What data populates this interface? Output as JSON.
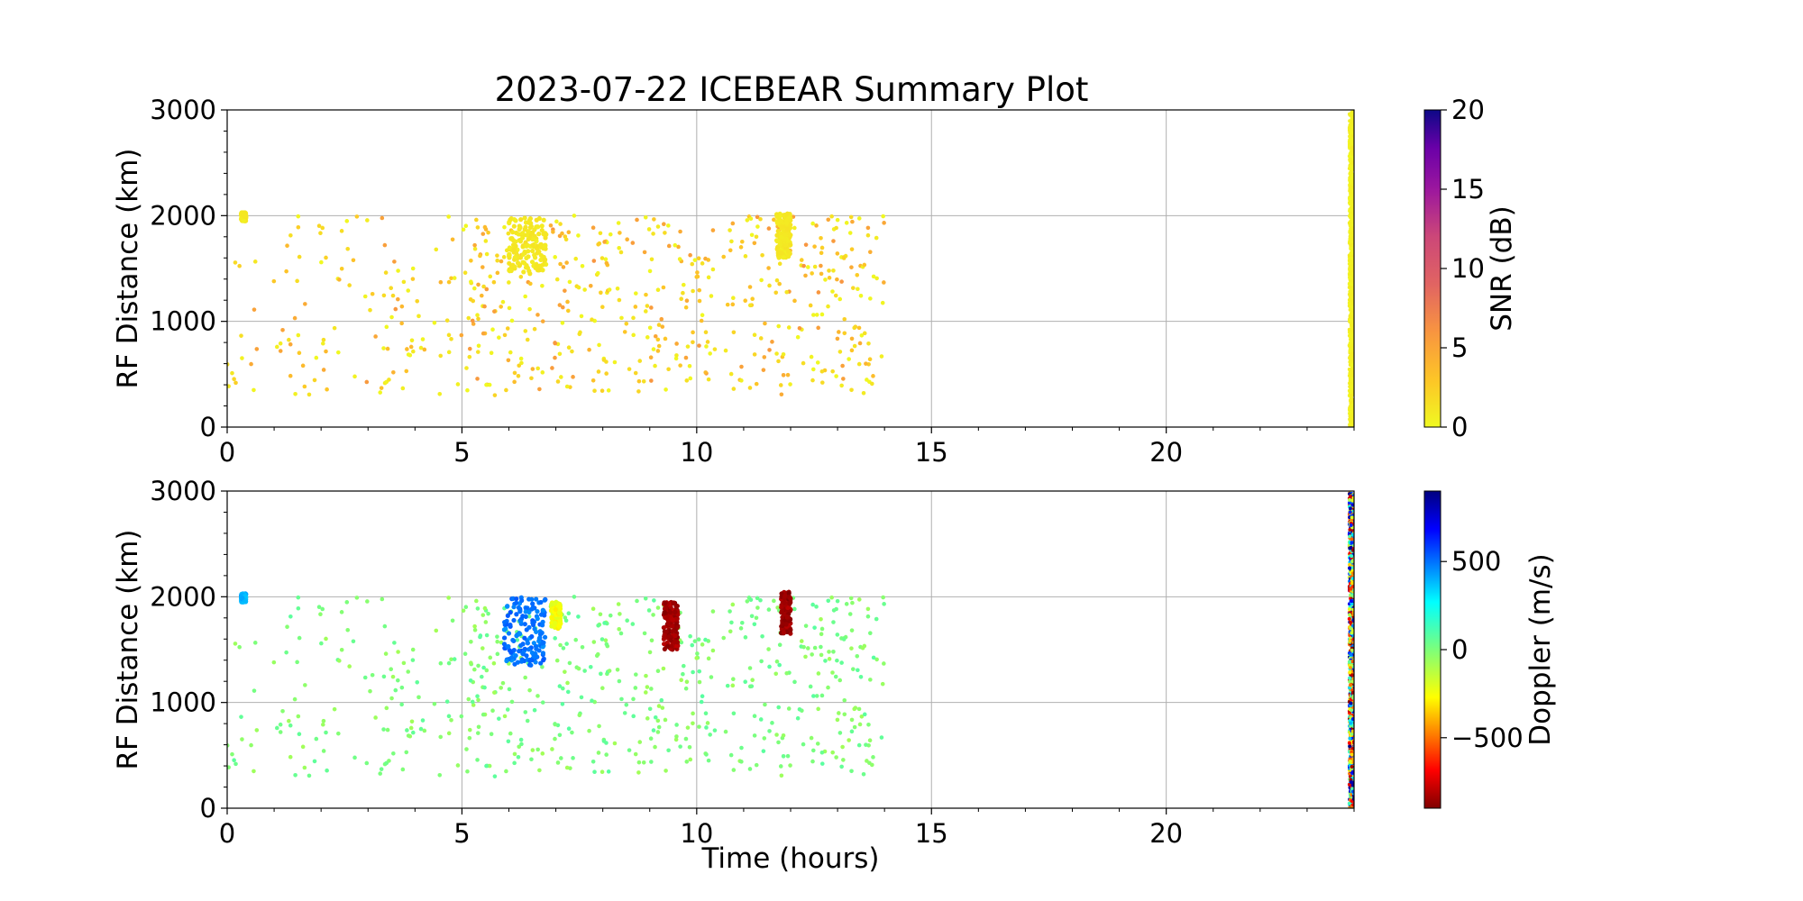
{
  "chart_data": {
    "title": "2023-07-22 ICEBEAR Summary Plot",
    "type": "scatter",
    "panels": [
      {
        "id": "snr",
        "ylabel": "RF Distance (km)",
        "xlabel": "",
        "xlim": [
          0,
          24
        ],
        "ylim": [
          0,
          3000
        ],
        "xticks": [
          "0",
          "5",
          "10",
          "15",
          "20"
        ],
        "yticks": [
          "0",
          "1000",
          "2000",
          "3000"
        ],
        "grid": true,
        "colorbar": {
          "label": "SNR (dB)",
          "range": [
            0,
            20
          ],
          "ticks": [
            "0",
            "5",
            "10",
            "15",
            "20"
          ],
          "colormap": "plasma_r"
        },
        "features": [
          {
            "x": [
              6.0,
              6.8
            ],
            "y": [
              1450,
              1980
            ],
            "value": 1
          },
          {
            "x": [
              11.7,
              12.0
            ],
            "y": [
              1600,
              2020
            ],
            "value": 1
          },
          {
            "x": [
              0.3,
              0.4
            ],
            "y": [
              1950,
              2030
            ],
            "value": 1
          },
          {
            "x": [
              23.9,
              24.0
            ],
            "y": [
              0,
              2980
            ],
            "value": 0.5,
            "dense": true
          }
        ]
      },
      {
        "id": "doppler",
        "ylabel": "RF Distance (km)",
        "xlabel": "Time (hours)",
        "xlim": [
          0,
          24
        ],
        "ylim": [
          0,
          3000
        ],
        "xticks": [
          "0",
          "5",
          "10",
          "15",
          "20"
        ],
        "yticks": [
          "0",
          "1000",
          "2000",
          "3000"
        ],
        "grid": true,
        "colorbar": {
          "label": "Doppler (m/s)",
          "range": [
            -900,
            900
          ],
          "ticks": [
            "−500",
            "0",
            "500"
          ],
          "tick_values": [
            -500,
            0,
            500
          ],
          "colormap": "jet_r"
        },
        "features": [
          {
            "x": [
              5.9,
              6.8
            ],
            "y": [
              1350,
              2000
            ],
            "value": 500
          },
          {
            "x": [
              11.8,
              12.0
            ],
            "y": [
              1650,
              2050
            ],
            "value": -850
          },
          {
            "x": [
              9.3,
              9.6
            ],
            "y": [
              1500,
              1950
            ],
            "value": -850
          },
          {
            "x": [
              6.9,
              7.1
            ],
            "y": [
              1700,
              1950
            ],
            "value": -250
          },
          {
            "x": [
              0.3,
              0.4
            ],
            "y": [
              1950,
              2030
            ],
            "value": 400
          },
          {
            "x": [
              23.9,
              24.0
            ],
            "y": [
              0,
              2980
            ],
            "value": "random",
            "dense": true
          }
        ]
      }
    ],
    "background_scatter": {
      "x_range": [
        0,
        14
      ],
      "y_range": [
        300,
        2000
      ],
      "snr_range": [
        0,
        6
      ],
      "doppler_range": [
        -80,
        80
      ]
    }
  }
}
